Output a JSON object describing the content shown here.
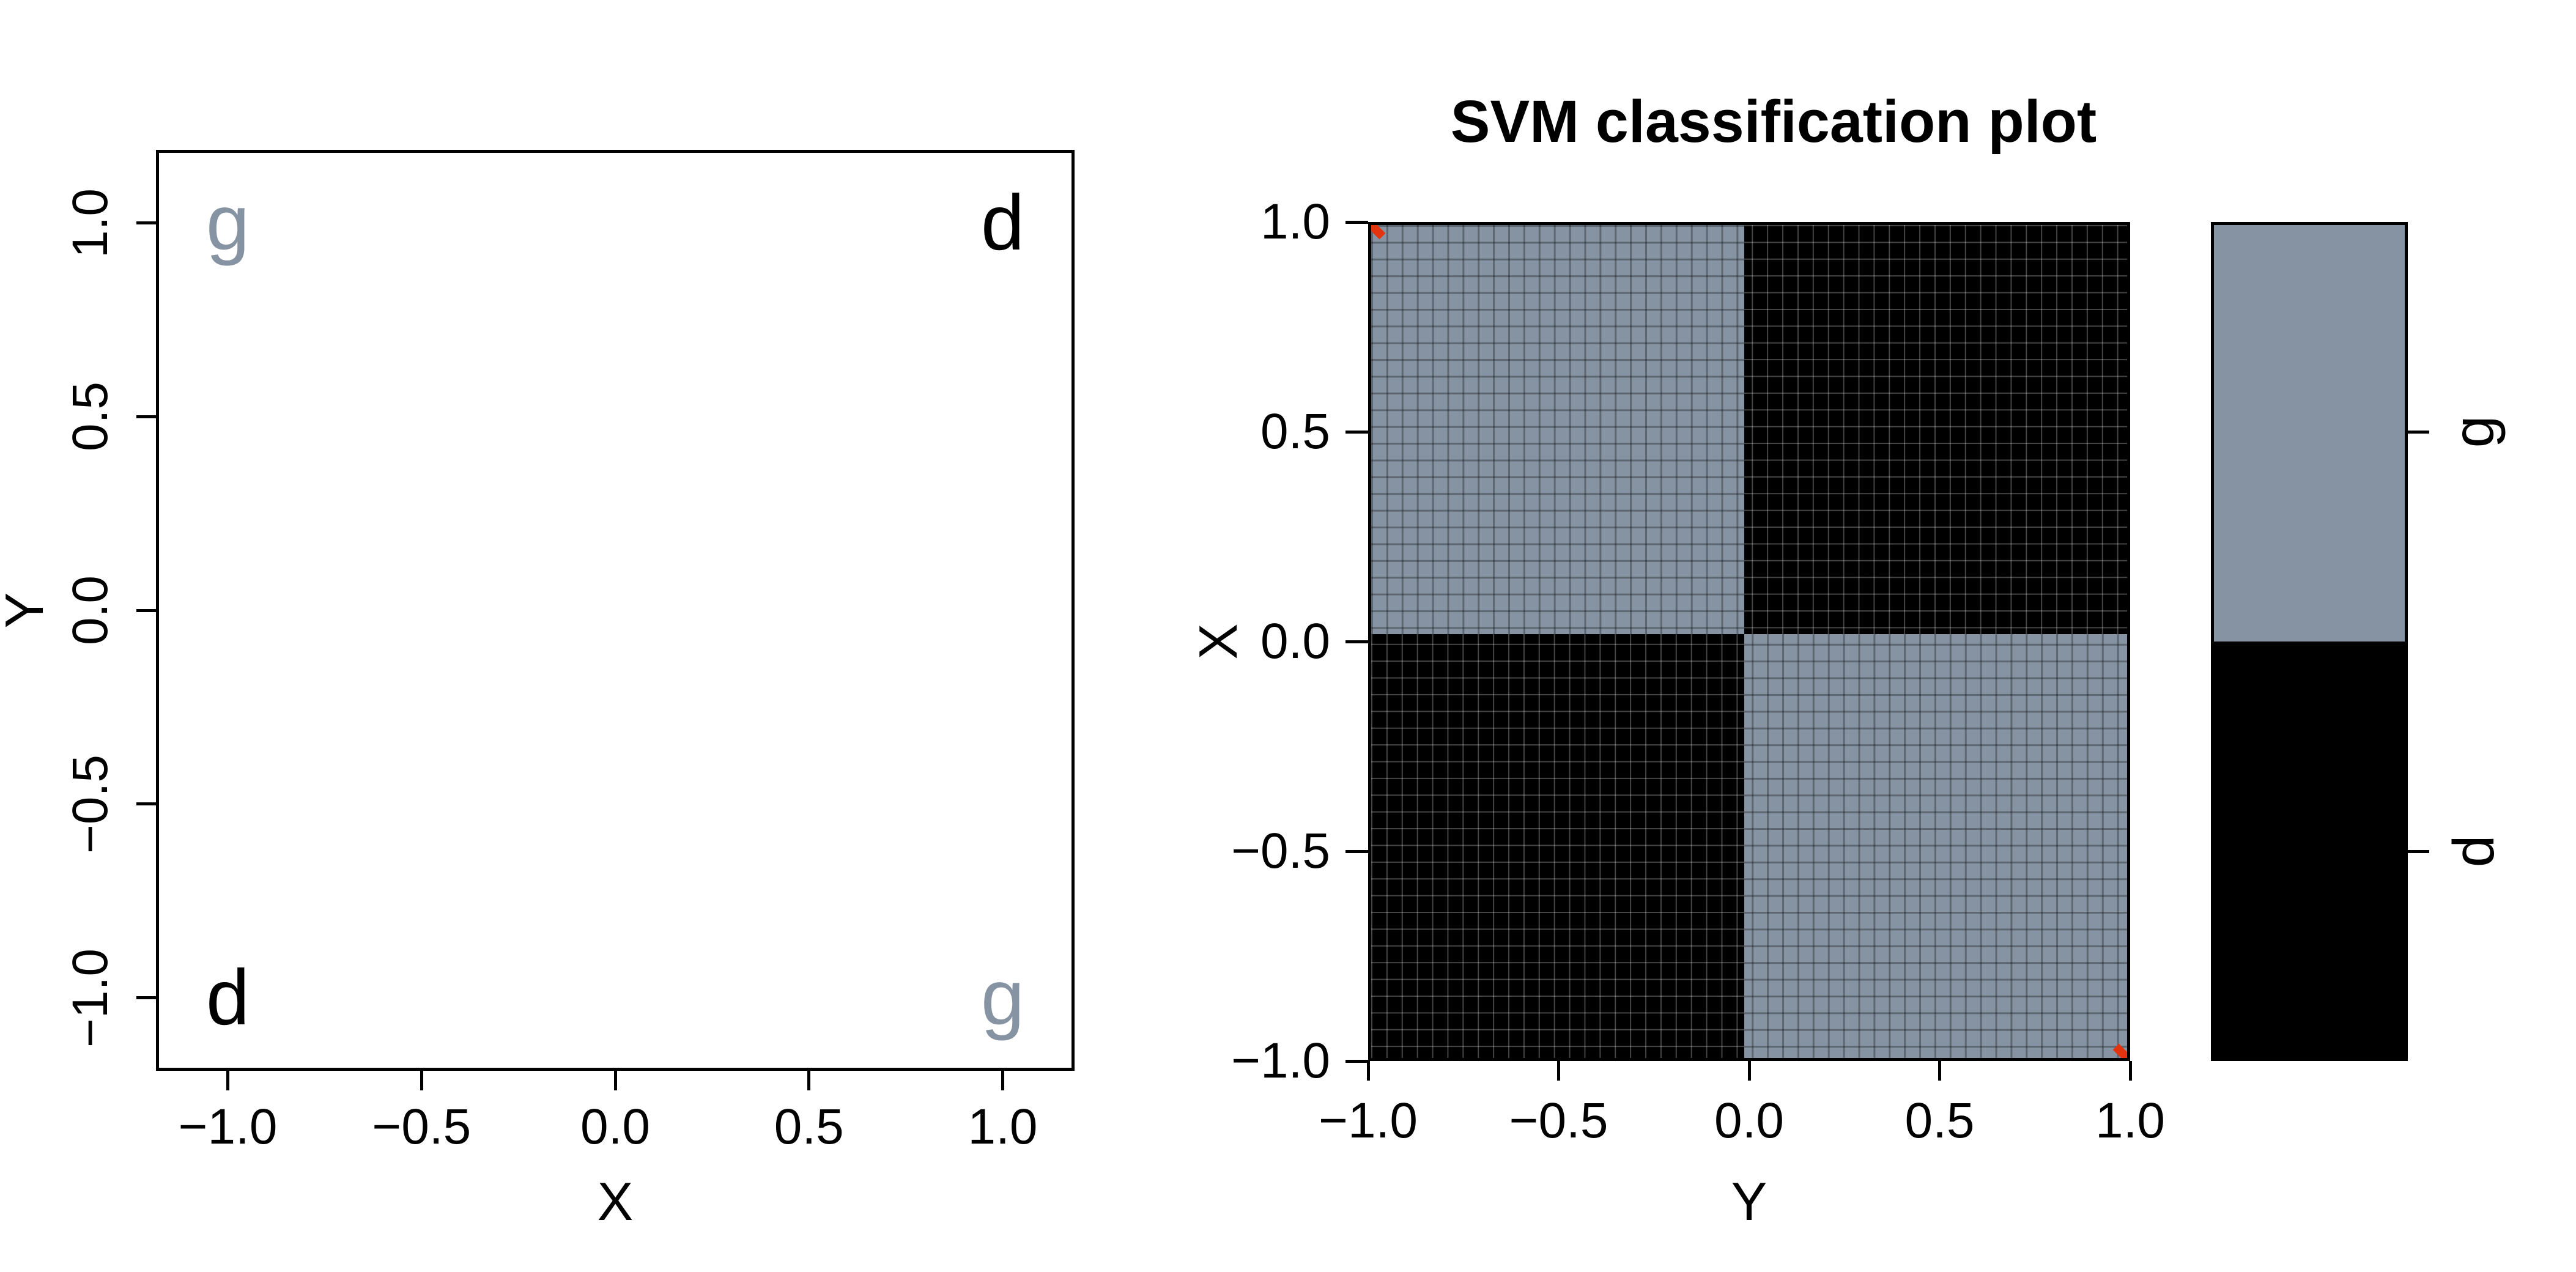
{
  "colors": {
    "background": "#ffffff",
    "axis": "#000000",
    "class_g": "#8593A2",
    "class_d": "#000000",
    "grid_on_gray": "rgba(0,0,0,0.30)",
    "grid_on_black": "rgba(255,255,255,0.27)",
    "support_vector_red": "#E2340E"
  },
  "chart_data": [
    {
      "type": "scatter",
      "panel": "left",
      "title": "",
      "xlabel": "X",
      "ylabel": "Y",
      "xlim": [
        -1.19,
        1.19
      ],
      "ylim": [
        -1.19,
        1.19
      ],
      "grid": false,
      "legend": "none",
      "x_ticks": [
        {
          "value": -1,
          "label": "−1.0"
        },
        {
          "value": -0.5,
          "label": "−0.5"
        },
        {
          "value": 0,
          "label": "0.0"
        },
        {
          "value": 0.5,
          "label": "0.5"
        },
        {
          "value": 1,
          "label": "1.0"
        }
      ],
      "y_ticks": [
        {
          "value": 1,
          "label": "1.0"
        },
        {
          "value": 0.5,
          "label": "0.5"
        },
        {
          "value": 0,
          "label": "0.0"
        },
        {
          "value": -0.5,
          "label": "−0.5"
        },
        {
          "value": -1,
          "label": "−1.0"
        }
      ],
      "points": [
        {
          "x": -1,
          "y": 1,
          "text": "g",
          "class": "g"
        },
        {
          "x": 1,
          "y": 1,
          "text": "d",
          "class": "d"
        },
        {
          "x": -1,
          "y": -1,
          "text": "d",
          "class": "d"
        },
        {
          "x": 1,
          "y": -1,
          "text": "g",
          "class": "g"
        }
      ]
    },
    {
      "type": "heatmap",
      "panel": "right",
      "title": "SVM classification plot",
      "xlabel": "Y",
      "ylabel": "X",
      "xlim": [
        -1,
        1
      ],
      "ylim": [
        -1,
        1
      ],
      "grid": true,
      "x_ticks": [
        {
          "value": -1,
          "label": "−1.0"
        },
        {
          "value": -0.5,
          "label": "−0.5"
        },
        {
          "value": 0,
          "label": "0.0"
        },
        {
          "value": 0.5,
          "label": "0.5"
        },
        {
          "value": 1,
          "label": "1.0"
        }
      ],
      "y_ticks": [
        {
          "value": 1,
          "label": "1.0"
        },
        {
          "value": 0.5,
          "label": "0.5"
        },
        {
          "value": 0,
          "label": "0.0"
        },
        {
          "value": -0.5,
          "label": "−0.5"
        },
        {
          "value": -1,
          "label": "−1.0"
        }
      ],
      "decision_regions": [
        {
          "region": "top-left",
          "x_range": [
            -1,
            0
          ],
          "y_range": [
            0,
            1
          ],
          "class": "g"
        },
        {
          "region": "top-right",
          "x_range": [
            0,
            1
          ],
          "y_range": [
            0,
            1
          ],
          "class": "d"
        },
        {
          "region": "bottom-left",
          "x_range": [
            -1,
            0
          ],
          "y_range": [
            -1,
            0
          ],
          "class": "d"
        },
        {
          "region": "bottom-right",
          "x_range": [
            0,
            1
          ],
          "y_range": [
            -1,
            0
          ],
          "class": "g"
        }
      ],
      "support_vectors": [
        {
          "plot_x": -1,
          "plot_y": 1
        },
        {
          "plot_x": 1,
          "plot_y": -1
        }
      ],
      "legend": {
        "position": "right",
        "entries": [
          {
            "label": "g",
            "class": "g"
          },
          {
            "label": "d",
            "class": "d"
          }
        ]
      }
    }
  ]
}
